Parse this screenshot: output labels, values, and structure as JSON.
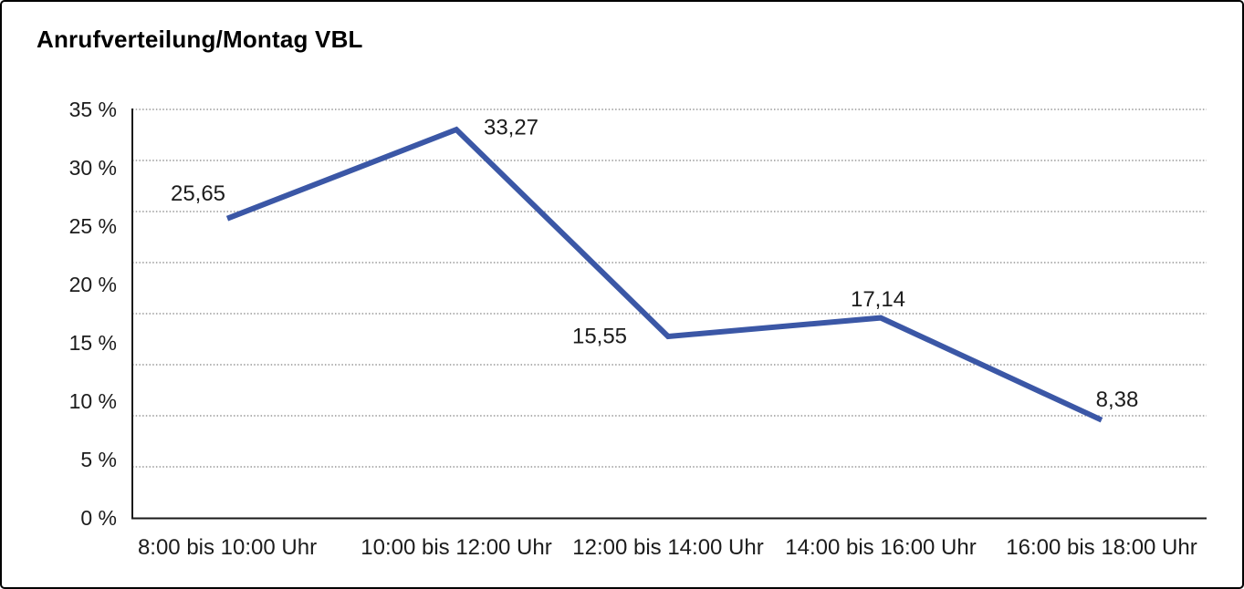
{
  "title": "Anrufverteilung/Montag VBL",
  "colors": {
    "line": "#3B57A6",
    "grid": "#828282",
    "axis": "#1a1a1a",
    "text": "#1c1c1c",
    "frame_border": "#000000",
    "background": "#ffffff"
  },
  "chart_data": {
    "type": "line",
    "title": "Anrufverteilung/Montag VBL",
    "categories": [
      "8:00 bis 10:00 Uhr",
      "10:00 bis 12:00 Uhr",
      "12:00 bis 14:00 Uhr",
      "14:00 bis 16:00 Uhr",
      "16:00 bis 18:00 Uhr"
    ],
    "values": [
      25.65,
      33.27,
      15.55,
      17.14,
      8.38
    ],
    "value_labels": [
      "25,65",
      "33,27",
      "15,55",
      "17,14",
      "8,38"
    ],
    "ytick_labels": [
      "0 %",
      "5 %",
      "10 %",
      "15 %",
      "20 %",
      "25 %",
      "30 %",
      "35 %"
    ],
    "ylim": [
      0,
      35
    ],
    "ytick_step": 5,
    "xlabel": "",
    "ylabel": "",
    "grid": "horizontal-dotted",
    "legend": "none",
    "line_color": "#3B57A6"
  }
}
